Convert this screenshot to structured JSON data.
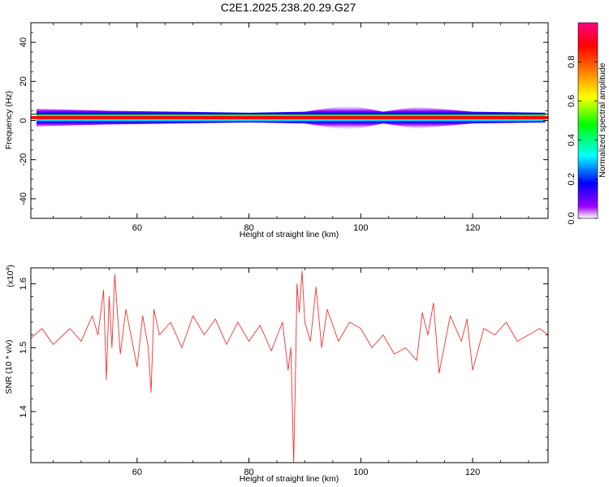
{
  "title": "C2E1.2025.238.20.29.G27",
  "chart_data": [
    {
      "type": "heatmap",
      "xlabel": "Height of straight line (km)",
      "ylabel": "Frequency (Hz)",
      "xlim": [
        41,
        133.5
      ],
      "ylim": [
        -50,
        50
      ],
      "x_ticks": [
        60,
        80,
        100,
        120
      ],
      "y_ticks": [
        40,
        20,
        0,
        -20,
        -40
      ],
      "colorbar": {
        "label": "Normalized spectral amplitude",
        "range": [
          0,
          1
        ],
        "ticks": [
          "0.0",
          "0.2",
          "0.4",
          "0.6",
          "0.8"
        ],
        "colors": [
          "#ffffff",
          "#9b00ff",
          "#0000ff",
          "#00ffff",
          "#00ff00",
          "#ffff00",
          "#ff8000",
          "#ff0000",
          "#ff0080"
        ]
      },
      "band": {
        "center_hz": 1.5,
        "profile": [
          {
            "x": 42,
            "halfwidth_hz": 4.5
          },
          {
            "x": 55,
            "halfwidth_hz": 3.5
          },
          {
            "x": 80,
            "halfwidth_hz": 2.5
          },
          {
            "x": 90,
            "halfwidth_hz": 3.0
          },
          {
            "x": 98,
            "halfwidth_hz": 6.5
          },
          {
            "x": 104,
            "halfwidth_hz": 3.0
          },
          {
            "x": 110,
            "halfwidth_hz": 5.5
          },
          {
            "x": 120,
            "halfwidth_hz": 3.0
          },
          {
            "x": 133,
            "halfwidth_hz": 2.5
          }
        ]
      }
    },
    {
      "type": "line",
      "xlabel": "Height of straight line (km)",
      "ylabel": "SNR (10 * v/v)",
      "multiplier_label": "(x10",
      "multiplier_exp": "4",
      "multiplier_close": ")",
      "xlim": [
        41,
        133.5
      ],
      "ylim": [
        1.32,
        1.625
      ],
      "x_ticks": [
        60,
        80,
        100,
        120
      ],
      "y_ticks": [
        "1.6",
        "1.5",
        "1.4"
      ],
      "y_tick_values": [
        1.6,
        1.5,
        1.4
      ],
      "color": "#ee3333",
      "series": {
        "x": [
          41,
          43,
          45,
          48,
          50,
          52,
          53,
          54,
          54.5,
          55,
          55.5,
          56,
          57,
          58,
          60,
          61,
          62,
          62.5,
          63,
          64,
          66,
          68,
          70,
          72,
          74,
          76,
          78,
          80,
          82,
          84,
          86,
          87,
          87.5,
          88,
          88.3,
          88.6,
          89,
          89.5,
          90,
          91,
          92,
          93,
          94,
          96,
          98,
          100,
          102,
          104,
          106,
          108,
          110,
          111,
          112,
          113,
          114,
          116,
          118,
          119,
          120,
          122,
          124,
          126,
          128,
          130,
          132,
          133.5
        ],
        "y": [
          1.515,
          1.53,
          1.505,
          1.53,
          1.51,
          1.55,
          1.52,
          1.59,
          1.45,
          1.58,
          1.5,
          1.615,
          1.49,
          1.56,
          1.47,
          1.55,
          1.5,
          1.43,
          1.56,
          1.52,
          1.54,
          1.5,
          1.55,
          1.52,
          1.545,
          1.505,
          1.54,
          1.51,
          1.535,
          1.495,
          1.54,
          1.465,
          1.5,
          1.32,
          1.45,
          1.6,
          1.555,
          1.62,
          1.54,
          1.51,
          1.595,
          1.5,
          1.56,
          1.51,
          1.54,
          1.53,
          1.5,
          1.52,
          1.49,
          1.5,
          1.48,
          1.555,
          1.52,
          1.57,
          1.46,
          1.55,
          1.51,
          1.545,
          1.465,
          1.53,
          1.52,
          1.54,
          1.51,
          1.52,
          1.53,
          1.52
        ]
      }
    }
  ]
}
